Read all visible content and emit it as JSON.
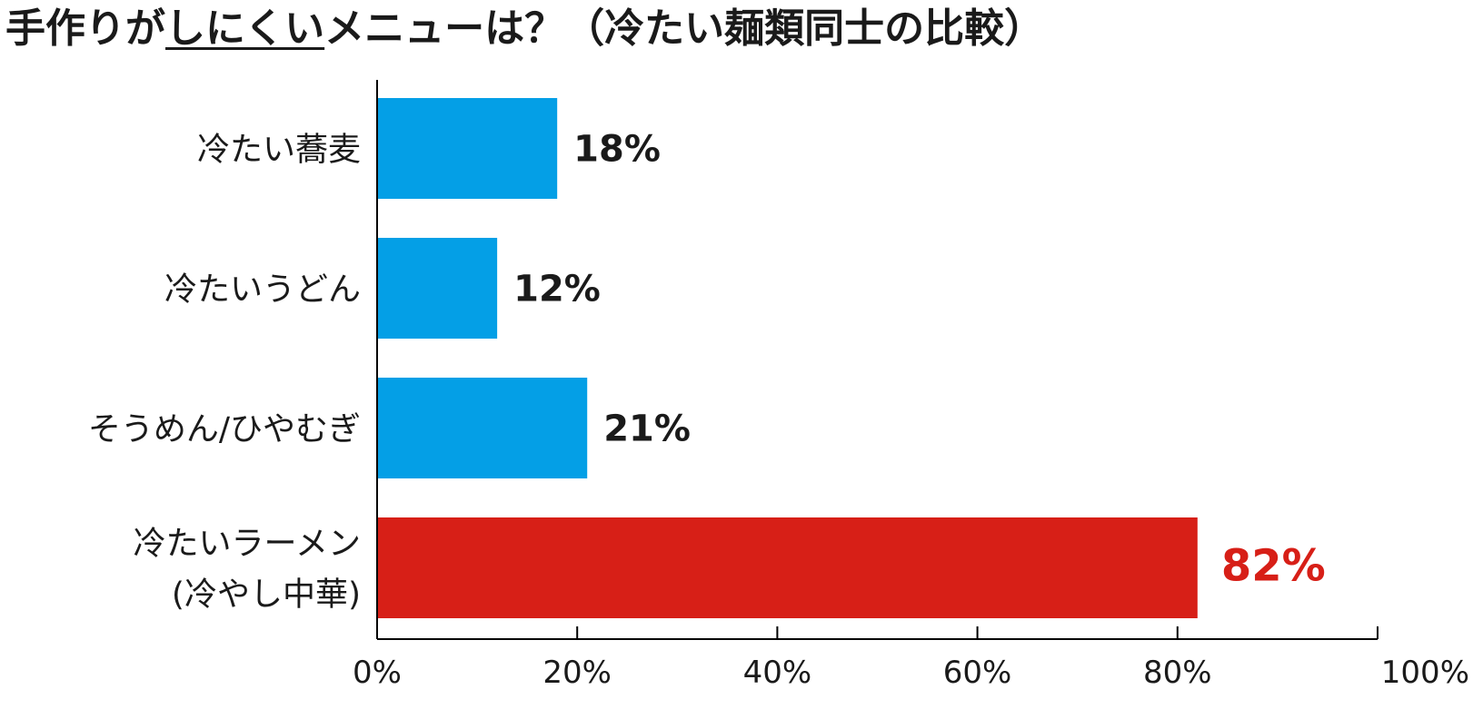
{
  "title": {
    "prefix": "手作りが",
    "underlined": "しにくい",
    "suffix": "メニューは？（冷たい麺類同士の比較）"
  },
  "colors": {
    "default_bar": "#049fe6",
    "highlight_bar": "#d71f17",
    "highlight_label": "#d71f17",
    "axis": "#000000"
  },
  "chart_data": {
    "type": "bar",
    "orientation": "horizontal",
    "title": "手作りがしにくいメニューは？（冷たい麺類同士の比較）",
    "categories": [
      [
        "冷たい蕎麦"
      ],
      [
        "冷たいうどん"
      ],
      [
        "そうめん/ひやむぎ"
      ],
      [
        "冷たいラーメン",
        "(冷やし中華)"
      ]
    ],
    "values": [
      18,
      12,
      21,
      82
    ],
    "value_labels": [
      "18%",
      "12%",
      "21%",
      "82%"
    ],
    "highlight_index": 3,
    "xlim": [
      0,
      100
    ],
    "xticks": [
      "0%",
      "20%",
      "40%",
      "60%",
      "80%",
      "100%"
    ],
    "grid": false,
    "legend": "none"
  }
}
